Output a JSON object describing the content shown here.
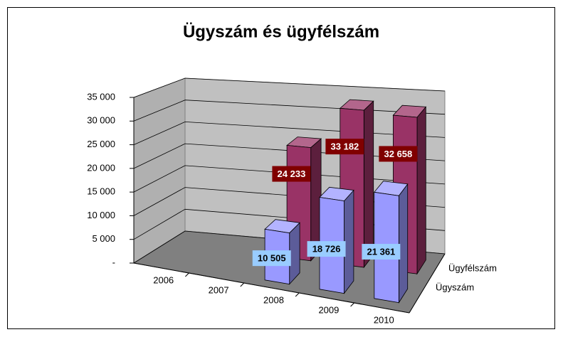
{
  "chart_data": {
    "type": "bar3d",
    "title": "Ügyszám és ügyfélszám",
    "categories": [
      "2006",
      "2007",
      "2008",
      "2009",
      "2010"
    ],
    "series": [
      {
        "name": "Ügyszám",
        "color": "#9999ff",
        "values": [
          null,
          null,
          10505,
          18726,
          21361
        ],
        "value_labels": [
          null,
          null,
          "10 505",
          "18 726",
          "21 361"
        ]
      },
      {
        "name": "Ügyfélszám",
        "color": "#993366",
        "values": [
          null,
          null,
          24233,
          33182,
          32658
        ],
        "value_labels": [
          null,
          null,
          "24 233",
          "33 182",
          "32 658"
        ]
      }
    ],
    "ylim": [
      0,
      35000
    ],
    "yticks": [
      {
        "value": 0,
        "label": "-"
      },
      {
        "value": 5000,
        "label": "5 000"
      },
      {
        "value": 10000,
        "label": "10 000"
      },
      {
        "value": 15000,
        "label": "15 000"
      },
      {
        "value": 20000,
        "label": "20 000"
      },
      {
        "value": 25000,
        "label": "25 000"
      },
      {
        "value": 30000,
        "label": "30 000"
      },
      {
        "value": 35000,
        "label": "35 000"
      }
    ],
    "grid": true
  }
}
